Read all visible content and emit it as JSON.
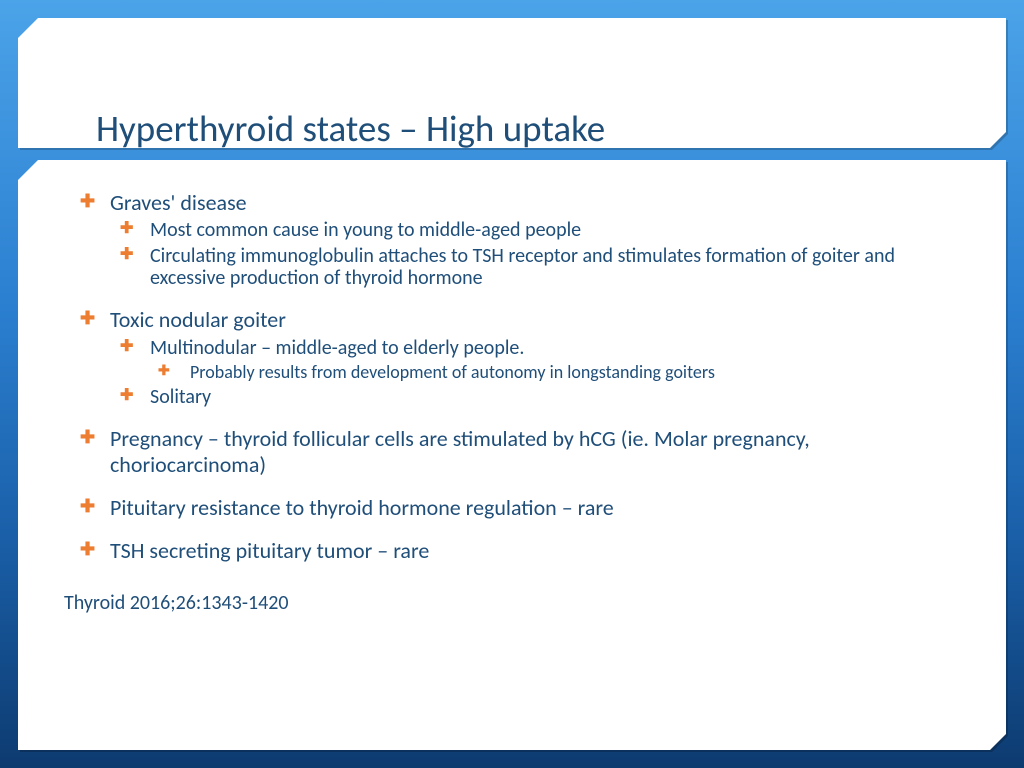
{
  "colors": {
    "bg_top": "#4ba3e8",
    "bg_bottom": "#0d3b70",
    "panel_bg": "#ffffff",
    "text": "#1f4e79",
    "bullet": "#ed7d31"
  },
  "typography": {
    "title_fontsize": 37,
    "body_l1_fontsize": 22,
    "body_l2_fontsize": 20,
    "body_l3_fontsize": 18,
    "citation_fontsize": 20,
    "font_family": "Segoe UI / Corbel"
  },
  "slide": {
    "title": "Hyperthyroid states – High uptake",
    "items": [
      {
        "level": 1,
        "text": "Graves' disease",
        "spaced": false
      },
      {
        "level": 2,
        "text": "Most common cause in young to middle-aged people"
      },
      {
        "level": 2,
        "text": "Circulating immunoglobulin attaches to TSH receptor and stimulates formation of goiter and excessive production of thyroid hormone"
      },
      {
        "level": 1,
        "text": "Toxic nodular goiter",
        "spaced": true
      },
      {
        "level": 2,
        "text": "Multinodular – middle-aged to elderly people."
      },
      {
        "level": 3,
        "text": "Probably results from development of autonomy in longstanding goiters"
      },
      {
        "level": 2,
        "text": "Solitary"
      },
      {
        "level": 1,
        "text": "Pregnancy – thyroid follicular cells are stimulated by hCG (ie. Molar pregnancy, choriocarcinoma)",
        "spaced": true
      },
      {
        "level": 1,
        "text": "Pituitary resistance to thyroid hormone regulation – rare",
        "spaced": true
      },
      {
        "level": 1,
        "text": "TSH secreting pituitary tumor – rare",
        "spaced": true
      }
    ],
    "citation": "Thyroid 2016;26:1343-1420"
  }
}
